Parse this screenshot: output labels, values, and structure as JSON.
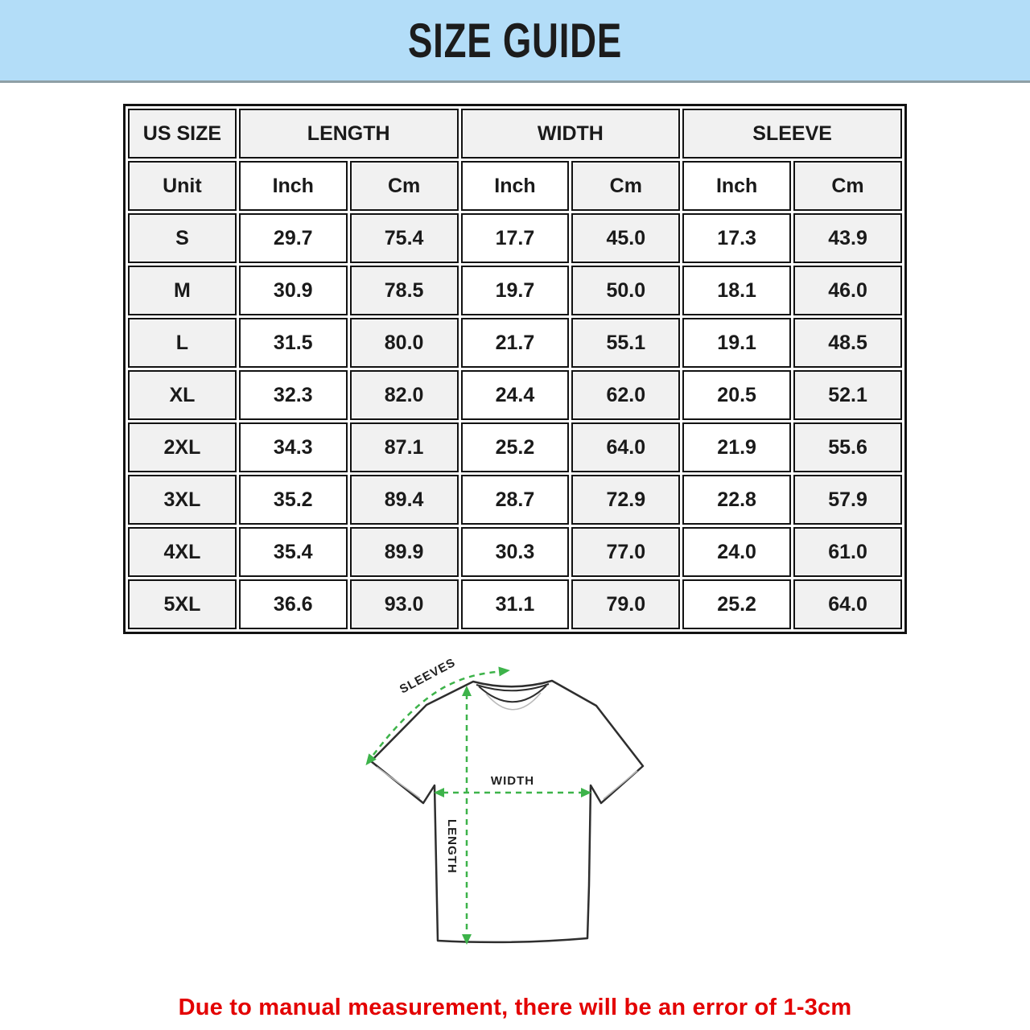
{
  "header": {
    "title": "SIZE GUIDE"
  },
  "table": {
    "col_groups": [
      {
        "label": "US SIZE",
        "span": 1
      },
      {
        "label": "LENGTH",
        "span": 2
      },
      {
        "label": "WIDTH",
        "span": 2
      },
      {
        "label": "SLEEVE",
        "span": 2
      }
    ],
    "unit_row": [
      "Unit",
      "Inch",
      "Cm",
      "Inch",
      "Cm",
      "Inch",
      "Cm"
    ],
    "rows": [
      {
        "size": "S",
        "values": [
          "29.7",
          "75.4",
          "17.7",
          "45.0",
          "17.3",
          "43.9"
        ]
      },
      {
        "size": "M",
        "values": [
          "30.9",
          "78.5",
          "19.7",
          "50.0",
          "18.1",
          "46.0"
        ]
      },
      {
        "size": "L",
        "values": [
          "31.5",
          "80.0",
          "21.7",
          "55.1",
          "19.1",
          "48.5"
        ]
      },
      {
        "size": "XL",
        "values": [
          "32.3",
          "82.0",
          "24.4",
          "62.0",
          "20.5",
          "52.1"
        ]
      },
      {
        "size": "2XL",
        "values": [
          "34.3",
          "87.1",
          "25.2",
          "64.0",
          "21.9",
          "55.6"
        ]
      },
      {
        "size": "3XL",
        "values": [
          "35.2",
          "89.4",
          "28.7",
          "72.9",
          "22.8",
          "57.9"
        ]
      },
      {
        "size": "4XL",
        "values": [
          "35.4",
          "89.9",
          "30.3",
          "77.0",
          "24.0",
          "61.0"
        ]
      },
      {
        "size": "5XL",
        "values": [
          "36.6",
          "93.0",
          "31.1",
          "79.0",
          "25.2",
          "64.0"
        ]
      }
    ]
  },
  "diagram": {
    "labels": {
      "sleeves": "SLEEVES",
      "width": "WIDTH",
      "length": "LENGTH"
    },
    "arrow_color": "#3db34a",
    "outline_color": "#2e2e2e"
  },
  "footer": {
    "note": "Due to manual measurement, there will be an error of 1-3cm"
  },
  "colors": {
    "banner_bg": "#b3ddf8",
    "banner_divider": "#8fa0a6",
    "cell_alt": "#f1f1f1",
    "table_border": "#121212",
    "note_red": "#e30000"
  }
}
